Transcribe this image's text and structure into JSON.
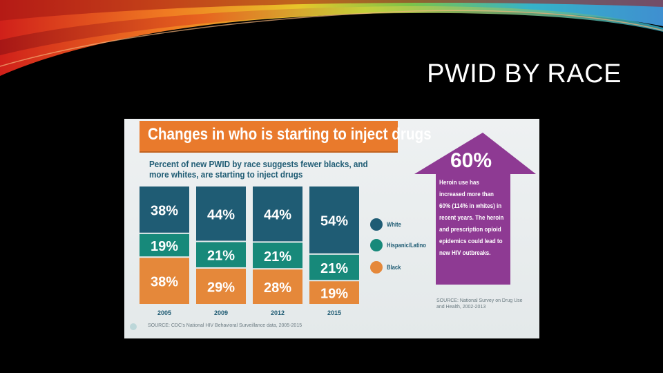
{
  "slide": {
    "title": "PWID BY RACE"
  },
  "infographic": {
    "headline": "Changes in who is starting to inject drugs",
    "subtitle": "Percent of new PWID by race suggests fewer blacks, and more whites, are starting to inject drugs",
    "source_left": "SOURCE: CDC's National HIV Behavioral Surveillance data, 2005-2015",
    "callout": {
      "percent": "60%",
      "text": "Heroin use has increased more than 60% (114% in whites) in recent years. The heroin and prescription opioid epidemics could lead to new HIV outbreaks.",
      "source": "SOURCE: National Survey on Drug Use and Health, 2002-2013",
      "color": "#8e3a93"
    }
  },
  "chart_data": {
    "type": "bar",
    "stacked": true,
    "categories": [
      "2005",
      "2009",
      "2012",
      "2015"
    ],
    "series": [
      {
        "name": "White",
        "values": [
          38,
          44,
          44,
          54
        ],
        "labels": [
          "38%",
          "44%",
          "44%",
          "54%"
        ],
        "color": "#1f5c74"
      },
      {
        "name": "Hispanic/Latino",
        "values": [
          19,
          21,
          21,
          21
        ],
        "labels": [
          "19%",
          "21%",
          "21%",
          "21%"
        ],
        "color": "#17897a"
      },
      {
        "name": "Black",
        "values": [
          38,
          29,
          28,
          19
        ],
        "labels": [
          "38%",
          "29%",
          "28%",
          "19%"
        ],
        "color": "#e5883a"
      }
    ],
    "legend_position": "right"
  }
}
